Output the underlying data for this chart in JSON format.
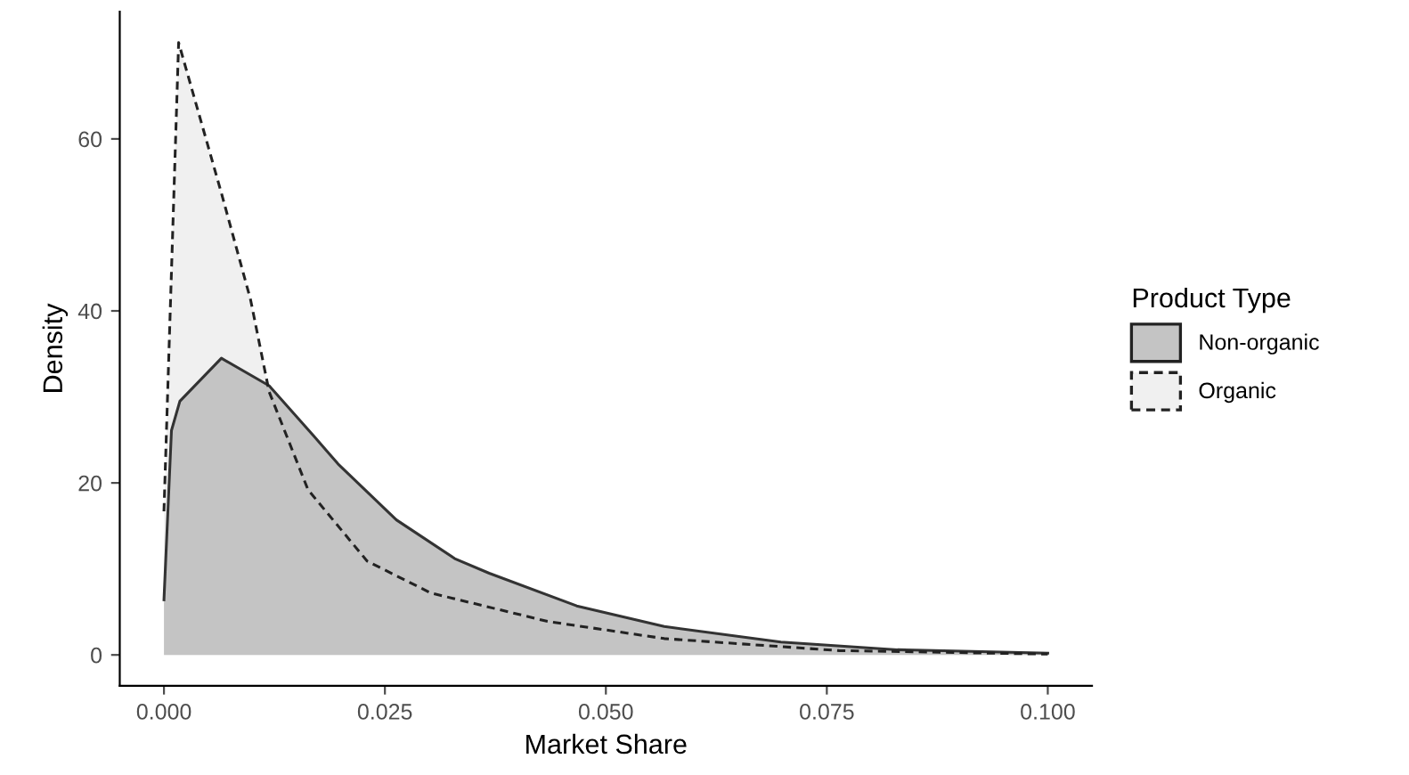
{
  "chart_data": {
    "type": "area",
    "xlabel": "Market Share",
    "ylabel": "Density",
    "legend_title": "Product Type",
    "legend": "right",
    "grid": false,
    "xlim": [
      -0.005,
      0.105
    ],
    "xticks": [
      {
        "value": 0,
        "label": "0.000"
      },
      {
        "value": 0.025,
        "label": "0.025"
      },
      {
        "value": 0.05,
        "label": "0.050"
      },
      {
        "value": 0.075,
        "label": "0.075"
      },
      {
        "value": 0.1,
        "label": "0.100"
      }
    ],
    "ylim": [
      -3.6,
      74.8
    ],
    "yticks": [
      0,
      20,
      40,
      60
    ],
    "series": [
      {
        "name": "Non-organic",
        "color": "#c4c4c4",
        "line_style": "solid",
        "x": [
          0,
          0.00085,
          0.0018,
          0.0065,
          0.0119,
          0.017,
          0.0197,
          0.0263,
          0.0329,
          0.0368,
          0.0467,
          0.0566,
          0.0698,
          0.083,
          0.1
        ],
        "values": [
          6.4,
          26.1,
          29.5,
          34.5,
          31.3,
          25.4,
          22.2,
          15.7,
          11.2,
          9.5,
          5.7,
          3.3,
          1.5,
          0.6,
          0.2
        ]
      },
      {
        "name": "Organic",
        "color": "#f0f0f0",
        "line_style": "dashed",
        "x": [
          0,
          0.00166,
          0.0065,
          0.0098,
          0.0119,
          0.0163,
          0.023,
          0.0302,
          0.0434,
          0.0566,
          0.0764,
          0.1
        ],
        "values": [
          16.7,
          71.2,
          53.7,
          41.3,
          30.6,
          19.2,
          10.9,
          7.2,
          3.9,
          1.9,
          0.5,
          0.1
        ]
      }
    ]
  }
}
